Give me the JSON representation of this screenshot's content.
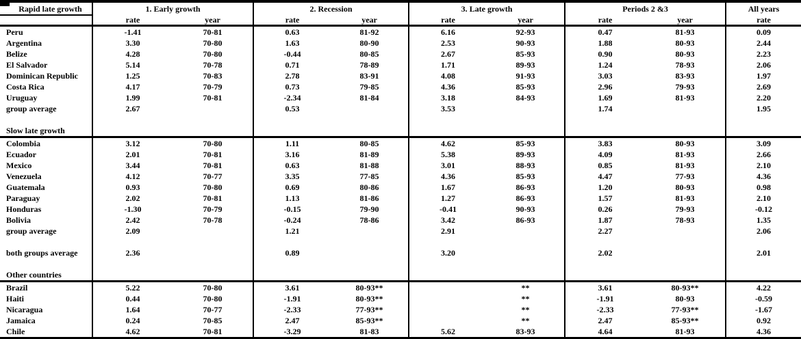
{
  "header": {
    "corner": "Rapid late growth",
    "groups": [
      {
        "title": "1. Early growth",
        "subcols": [
          "rate",
          "year"
        ]
      },
      {
        "title": "2. Recession",
        "subcols": [
          "rate",
          "year"
        ]
      },
      {
        "title": "3. Late growth",
        "subcols": [
          "rate",
          "year"
        ]
      },
      {
        "title": "Periods 2 &3",
        "subcols": [
          "rate",
          "year"
        ]
      },
      {
        "title": "All years",
        "subcols": [
          "rate"
        ]
      }
    ]
  },
  "rows": [
    {
      "type": "data",
      "label": "Peru",
      "cells": [
        "-1.41",
        "70-81",
        "0.63",
        "81-92",
        "6.16",
        "92-93",
        "0.47",
        "81-93",
        "0.09"
      ]
    },
    {
      "type": "data",
      "label": "Argentina",
      "cells": [
        "3.30",
        "70-80",
        "1.63",
        "80-90",
        "2.53",
        "90-93",
        "1.88",
        "80-93",
        "2.44"
      ]
    },
    {
      "type": "data",
      "label": "Belize",
      "cells": [
        "4.28",
        "70-80",
        "-0.44",
        "80-85",
        "2.67",
        "85-93",
        "0.90",
        "80-93",
        "2.23"
      ]
    },
    {
      "type": "data",
      "label": "El Salvador",
      "cells": [
        "5.14",
        "70-78",
        "0.71",
        "78-89",
        "1.71",
        "89-93",
        "1.24",
        "78-93",
        "2.06"
      ]
    },
    {
      "type": "data",
      "label": "Dominican Republic",
      "cells": [
        "1.25",
        "70-83",
        "2.78",
        "83-91",
        "4.08",
        "91-93",
        "3.03",
        "83-93",
        "1.97"
      ]
    },
    {
      "type": "data",
      "label": "Costa Rica",
      "cells": [
        "4.17",
        "70-79",
        "0.73",
        "79-85",
        "4.36",
        "85-93",
        "2.96",
        "79-93",
        "2.69"
      ]
    },
    {
      "type": "data",
      "label": "Uruguay",
      "cells": [
        "1.99",
        "70-81",
        "-2.34",
        "81-84",
        "3.18",
        "84-93",
        "1.69",
        "81-93",
        "2.20"
      ]
    },
    {
      "type": "data",
      "label": "group average",
      "cells": [
        "2.67",
        "",
        "0.53",
        "",
        "3.53",
        "",
        "1.74",
        "",
        "1.95"
      ]
    },
    {
      "type": "blank"
    },
    {
      "type": "section",
      "label": "Slow late growth"
    },
    {
      "type": "data",
      "rule_above": true,
      "label": "Colombia",
      "cells": [
        "3.12",
        "70-80",
        "1.11",
        "80-85",
        "4.62",
        "85-93",
        "3.83",
        "80-93",
        "3.09"
      ]
    },
    {
      "type": "data",
      "label": "Ecuador",
      "cells": [
        "2.01",
        "70-81",
        "3.16",
        "81-89",
        "5.38",
        "89-93",
        "4.09",
        "81-93",
        "2.66"
      ]
    },
    {
      "type": "data",
      "label": "Mexico",
      "cells": [
        "3.44",
        "70-81",
        "0.63",
        "81-88",
        "3.01",
        "88-93",
        "0.85",
        "81-93",
        "2.10"
      ]
    },
    {
      "type": "data",
      "label": "Venezuela",
      "cells": [
        "4.12",
        "70-77",
        "3.35",
        "77-85",
        "4.36",
        "85-93",
        "4.47",
        "77-93",
        "4.36"
      ]
    },
    {
      "type": "data",
      "label": "Guatemala",
      "cells": [
        "0.93",
        "70-80",
        "0.69",
        "80-86",
        "1.67",
        "86-93",
        "1.20",
        "80-93",
        "0.98"
      ]
    },
    {
      "type": "data",
      "label": "Paraguay",
      "cells": [
        "2.02",
        "70-81",
        "1.13",
        "81-86",
        "1.27",
        "86-93",
        "1.57",
        "81-93",
        "2.10"
      ]
    },
    {
      "type": "data",
      "label": "Honduras",
      "cells": [
        "-1.30",
        "70-79",
        "-0.15",
        "79-90",
        "-0.41",
        "90-93",
        "0.26",
        "79-93",
        "-0.12"
      ]
    },
    {
      "type": "data",
      "label": "Bolivia",
      "cells": [
        "2.42",
        "70-78",
        "-0.24",
        "78-86",
        "3.42",
        "86-93",
        "1.87",
        "78-93",
        "1.35"
      ]
    },
    {
      "type": "data",
      "label": "group average",
      "cells": [
        "2.09",
        "",
        "1.21",
        "",
        "2.91",
        "",
        "2.27",
        "",
        "2.06"
      ]
    },
    {
      "type": "blank"
    },
    {
      "type": "data",
      "label": "both groups average",
      "cells": [
        "2.36",
        "",
        "0.89",
        "",
        "3.20",
        "",
        "2.02",
        "",
        "2.01"
      ]
    },
    {
      "type": "blank"
    },
    {
      "type": "section",
      "label": "Other countries"
    },
    {
      "type": "data",
      "rule_above": true,
      "label": "Brazil",
      "cells": [
        "5.22",
        "70-80",
        "3.61",
        "80-93**",
        "",
        "**",
        "3.61",
        "80-93**",
        "4.22"
      ]
    },
    {
      "type": "data",
      "label": "Haiti",
      "cells": [
        "0.44",
        "70-80",
        "-1.91",
        "80-93**",
        "",
        "**",
        "-1.91",
        "80-93",
        "-0.59"
      ]
    },
    {
      "type": "data",
      "label": "Nicaragua",
      "cells": [
        "1.64",
        "70-77",
        "-2.33",
        "77-93**",
        "",
        "**",
        "-2.33",
        "77-93**",
        "-1.67"
      ]
    },
    {
      "type": "data",
      "label": "Jamaica",
      "cells": [
        "0.24",
        "70-85",
        "2.47",
        "85-93**",
        "",
        "**",
        "2.47",
        "85-93**",
        "0.92"
      ]
    },
    {
      "type": "data",
      "label": "Chile",
      "cells": [
        "4.62",
        "70-81",
        "-3.29",
        "81-83",
        "5.62",
        "83-93",
        "4.64",
        "81-93",
        "4.36"
      ]
    }
  ]
}
